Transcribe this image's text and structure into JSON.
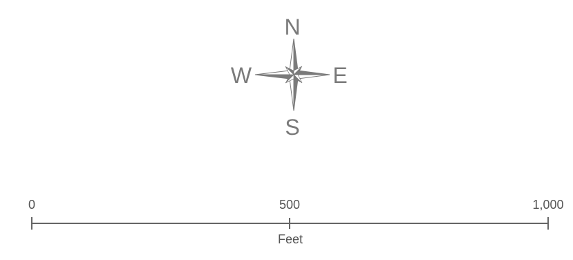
{
  "compass": {
    "north": "N",
    "south": "S",
    "east": "E",
    "west": "W",
    "icon": "compass-rose-icon",
    "color": "#7a7a7a"
  },
  "scale_bar": {
    "ticks": [
      "0",
      "500",
      "1,000"
    ],
    "unit": "Feet",
    "color": "#666666"
  }
}
